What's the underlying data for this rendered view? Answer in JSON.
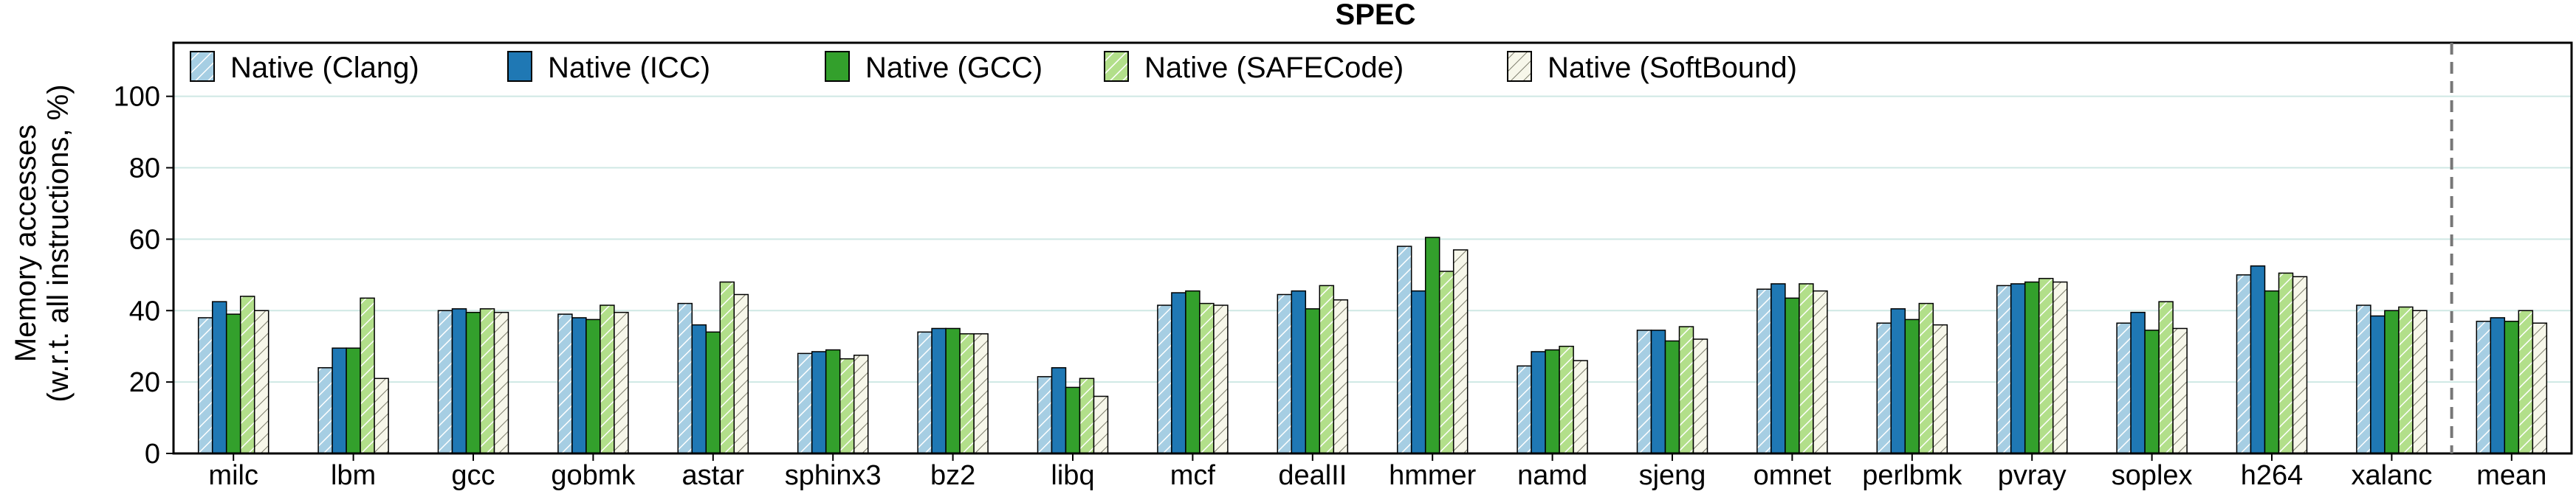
{
  "chart_data": {
    "type": "bar",
    "title": "SPEC",
    "xlabel": "",
    "ylabel": "Memory accesses",
    "ylabel_line2": "(w.r.t. all instructions, %)",
    "ylim": [
      0,
      115
    ],
    "yticks": [
      "0",
      "20",
      "40",
      "60",
      "80",
      "100"
    ],
    "grid": true,
    "legend_position": "top-left",
    "categories": [
      "milc",
      "lbm",
      "gcc",
      "gobmk",
      "astar",
      "sphinx3",
      "bz2",
      "libq",
      "mcf",
      "dealII",
      "hmmer",
      "namd",
      "sjeng",
      "omnet",
      "perlbmk",
      "pvray",
      "soplex",
      "h264",
      "xalanc",
      "mean"
    ],
    "separator_before": "mean",
    "series": [
      {
        "name": "Native (Clang)",
        "color": "#a6cee3",
        "pattern": "diagonal",
        "values": [
          38,
          24,
          40,
          39,
          42,
          28,
          34,
          21.5,
          41.5,
          44.5,
          58,
          24.5,
          34.5,
          46,
          36.5,
          47,
          36.5,
          50,
          41.5,
          37
        ]
      },
      {
        "name": "Native (ICC)",
        "color": "#1f78b4",
        "pattern": "solid",
        "values": [
          42.5,
          29.5,
          40.5,
          38,
          36,
          28.5,
          35,
          24,
          45,
          45.5,
          45.5,
          28.5,
          34.5,
          47.5,
          40.5,
          47.5,
          39.5,
          52.5,
          38.5,
          38
        ]
      },
      {
        "name": "Native (GCC)",
        "color": "#33a02c",
        "pattern": "solid",
        "values": [
          39,
          29.5,
          39.5,
          37.5,
          34,
          29,
          35,
          18.5,
          45.5,
          40.5,
          60.5,
          29,
          31.5,
          43.5,
          37.5,
          48,
          34.5,
          45.5,
          40,
          37
        ]
      },
      {
        "name": "Native (SAFECode)",
        "color": "#b2df8a",
        "pattern": "diagonal",
        "values": [
          44,
          43.5,
          40.5,
          41.5,
          48,
          26.5,
          33.5,
          21,
          42,
          47,
          51,
          30,
          35.5,
          47.5,
          42,
          49,
          42.5,
          50.5,
          41,
          40
        ]
      },
      {
        "name": "Native (SoftBound)",
        "color": "#f4f4e2",
        "pattern": "diagonal",
        "values": [
          40,
          21,
          39.5,
          39.5,
          44.5,
          27.5,
          33.5,
          16,
          41.5,
          43,
          57,
          26,
          32,
          45.5,
          36,
          48,
          35,
          49.5,
          40,
          36.5
        ]
      }
    ]
  }
}
